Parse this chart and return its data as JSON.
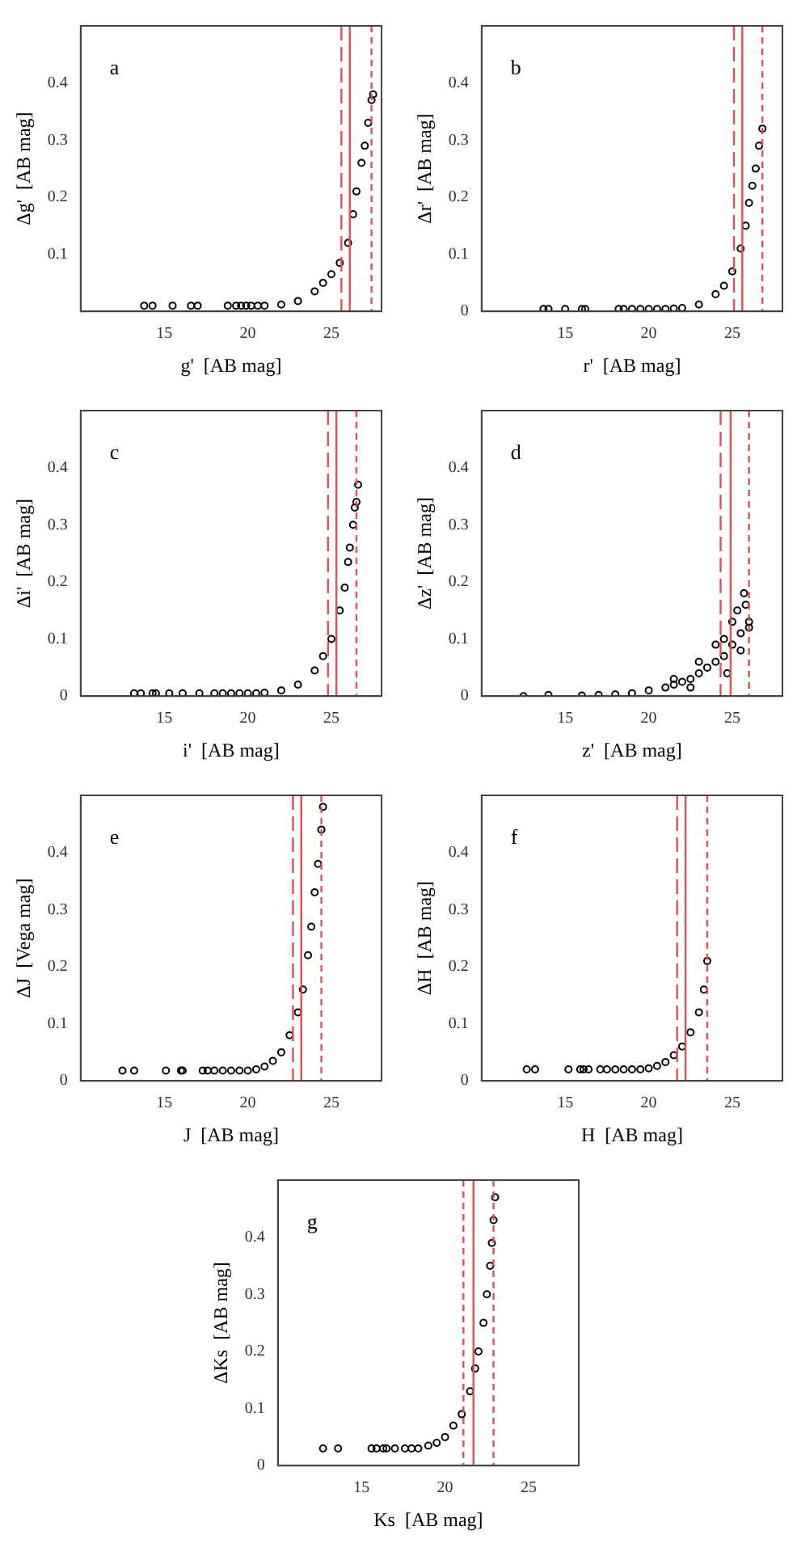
{
  "chart_data": [
    {
      "type": "scatter",
      "xlabel": "g'  [AB mag]",
      "ylabel": "Δg'  [AB mag]",
      "annotations": [
        "a"
      ],
      "marker": "circle",
      "grid": false,
      "xlim": [
        10,
        28
      ],
      "ylim": [
        0,
        0.5
      ],
      "xticks": [
        15,
        20,
        25
      ],
      "yticks": [
        0.1,
        0.2,
        0.3,
        0.4
      ],
      "series": [
        {
          "color": "#000000",
          "x": [
            13.8,
            14.3,
            15.5,
            16.6,
            17.0,
            18.8,
            19.3,
            19.6,
            19.9,
            20.2,
            20.6,
            21,
            22,
            23,
            24,
            24.5,
            25,
            25.5,
            26,
            26.3,
            26.5,
            26.8,
            27.0,
            27.2,
            27.4,
            27.5
          ],
          "values": [
            0.01,
            0.01,
            0.01,
            0.01,
            0.01,
            0.01,
            0.01,
            0.01,
            0.01,
            0.01,
            0.01,
            0.01,
            0.012,
            0.018,
            0.035,
            0.05,
            0.065,
            0.085,
            0.12,
            0.17,
            0.21,
            0.26,
            0.29,
            0.33,
            0.37,
            0.38
          ]
        }
      ],
      "ref_lines": [
        {
          "axis": "x",
          "value": 25.6,
          "color": "#e05050",
          "line_style": "dashed"
        },
        {
          "axis": "x",
          "value": 26.1,
          "color": "#e05050",
          "line_style": "solid"
        },
        {
          "axis": "x",
          "value": 27.4,
          "color": "#e05050",
          "line_style": "dotted"
        }
      ]
    },
    {
      "type": "scatter",
      "xlabel": "r'  [AB mag]",
      "ylabel": "Δr'  [AB mag]",
      "annotations": [
        "b"
      ],
      "marker": "circle",
      "grid": false,
      "xlim": [
        10,
        28
      ],
      "ylim": [
        0,
        0.5
      ],
      "xticks": [
        15,
        20,
        25
      ],
      "yticks": [
        0,
        0.1,
        0.2,
        0.3,
        0.4
      ],
      "series": [
        {
          "color": "#000000",
          "x": [
            13.7,
            14.0,
            15.0,
            16.0,
            16.2,
            18.2,
            18.5,
            19.0,
            19.5,
            20,
            20.5,
            21,
            21.5,
            22,
            23,
            24,
            24.5,
            25,
            25.5,
            25.8,
            26,
            26.2,
            26.4,
            26.6,
            26.8
          ],
          "values": [
            0.004,
            0.004,
            0.004,
            0.004,
            0.004,
            0.004,
            0.004,
            0.004,
            0.004,
            0.004,
            0.004,
            0.004,
            0.005,
            0.006,
            0.012,
            0.03,
            0.045,
            0.07,
            0.11,
            0.15,
            0.19,
            0.22,
            0.25,
            0.29,
            0.32
          ]
        }
      ],
      "ref_lines": [
        {
          "axis": "x",
          "value": 25.1,
          "color": "#e05050",
          "line_style": "dashed"
        },
        {
          "axis": "x",
          "value": 25.6,
          "color": "#e05050",
          "line_style": "solid"
        },
        {
          "axis": "x",
          "value": 26.8,
          "color": "#e05050",
          "line_style": "dotted"
        }
      ]
    },
    {
      "type": "scatter",
      "xlabel": "i'  [AB mag]",
      "ylabel": "Δi'  [AB mag]",
      "annotations": [
        "c"
      ],
      "marker": "circle",
      "grid": false,
      "xlim": [
        10,
        28
      ],
      "ylim": [
        0,
        0.5
      ],
      "xticks": [
        15,
        20,
        25
      ],
      "yticks": [
        0,
        0.1,
        0.2,
        0.3,
        0.4
      ],
      "series": [
        {
          "color": "#000000",
          "x": [
            13.2,
            13.6,
            14.3,
            14.5,
            15.3,
            16.1,
            17.1,
            18,
            18.5,
            19,
            19.5,
            20,
            20.5,
            21,
            22,
            23,
            24,
            24.5,
            25,
            25.5,
            25.8,
            26,
            26.1,
            26.3,
            26.4,
            26.5,
            26.6
          ],
          "values": [
            0.005,
            0.005,
            0.005,
            0.005,
            0.005,
            0.005,
            0.005,
            0.005,
            0.005,
            0.005,
            0.005,
            0.005,
            0.005,
            0.006,
            0.01,
            0.02,
            0.045,
            0.07,
            0.1,
            0.15,
            0.19,
            0.235,
            0.26,
            0.3,
            0.33,
            0.34,
            0.37
          ]
        }
      ],
      "ref_lines": [
        {
          "axis": "x",
          "value": 24.8,
          "color": "#e05050",
          "line_style": "dashed"
        },
        {
          "axis": "x",
          "value": 25.3,
          "color": "#e05050",
          "line_style": "solid"
        },
        {
          "axis": "x",
          "value": 26.5,
          "color": "#e05050",
          "line_style": "dotted"
        }
      ]
    },
    {
      "type": "scatter",
      "xlabel": "z'  [AB mag]",
      "ylabel": "Δz'  [AB mag]",
      "annotations": [
        "d"
      ],
      "marker": "circle",
      "grid": false,
      "xlim": [
        10,
        28
      ],
      "ylim": [
        0,
        0.5
      ],
      "xticks": [
        15,
        20,
        25
      ],
      "yticks": [
        0,
        0.1,
        0.2,
        0.3,
        0.4
      ],
      "series": [
        {
          "color": "#000000",
          "x": [
            12.5,
            14,
            16,
            17,
            18,
            19,
            20,
            21,
            21.5,
            22,
            22.5,
            23,
            23.5,
            24,
            24.5,
            25,
            25.5,
            26,
            23,
            24,
            24.5,
            25,
            25.3,
            25.7,
            25.8,
            24.7,
            25.5,
            26,
            22.5,
            21.5
          ],
          "values": [
            0,
            0.002,
            0.001,
            0.002,
            0.003,
            0.005,
            0.01,
            0.015,
            0.02,
            0.025,
            0.03,
            0.04,
            0.05,
            0.06,
            0.07,
            0.09,
            0.11,
            0.13,
            0.06,
            0.09,
            0.1,
            0.13,
            0.15,
            0.18,
            0.16,
            0.04,
            0.08,
            0.12,
            0.015,
            0.03
          ]
        }
      ],
      "ref_lines": [
        {
          "axis": "x",
          "value": 24.3,
          "color": "#e05050",
          "line_style": "dashed"
        },
        {
          "axis": "x",
          "value": 24.9,
          "color": "#e05050",
          "line_style": "solid"
        },
        {
          "axis": "x",
          "value": 26.0,
          "color": "#e05050",
          "line_style": "dotted"
        }
      ]
    },
    {
      "type": "scatter",
      "xlabel": "J  [AB mag]",
      "ylabel": "ΔJ  [Vega mag]",
      "annotations": [
        "e"
      ],
      "marker": "circle",
      "grid": false,
      "xlim": [
        10,
        28
      ],
      "ylim": [
        0,
        0.5
      ],
      "xticks": [
        15,
        20,
        25
      ],
      "yticks": [
        0,
        0.1,
        0.2,
        0.3,
        0.4
      ],
      "series": [
        {
          "color": "#000000",
          "x": [
            12.5,
            13.2,
            15.1,
            16,
            16.1,
            17.3,
            17.6,
            18,
            18.5,
            19,
            19.5,
            20,
            20.5,
            21,
            21.5,
            22,
            22.5,
            23,
            23.3,
            23.6,
            23.8,
            24,
            24.2,
            24.4,
            24.5
          ],
          "values": [
            0.018,
            0.018,
            0.018,
            0.018,
            0.018,
            0.018,
            0.018,
            0.018,
            0.018,
            0.018,
            0.018,
            0.018,
            0.02,
            0.025,
            0.035,
            0.05,
            0.08,
            0.12,
            0.16,
            0.22,
            0.27,
            0.33,
            0.38,
            0.44,
            0.48
          ]
        }
      ],
      "ref_lines": [
        {
          "axis": "x",
          "value": 22.7,
          "color": "#e05050",
          "line_style": "dashed"
        },
        {
          "axis": "x",
          "value": 23.2,
          "color": "#e05050",
          "line_style": "solid"
        },
        {
          "axis": "x",
          "value": 24.4,
          "color": "#e05050",
          "line_style": "dotted"
        }
      ]
    },
    {
      "type": "scatter",
      "xlabel": "H  [AB mag]",
      "ylabel": "ΔH  [AB mag]",
      "annotations": [
        "f"
      ],
      "marker": "circle",
      "grid": false,
      "xlim": [
        10,
        28
      ],
      "ylim": [
        0,
        0.5
      ],
      "xticks": [
        15,
        20,
        25
      ],
      "yticks": [
        0,
        0.1,
        0.2,
        0.3,
        0.4
      ],
      "series": [
        {
          "color": "#000000",
          "x": [
            12.7,
            13.2,
            15.2,
            15.9,
            16.1,
            16.4,
            17.1,
            17.5,
            18,
            18.5,
            19,
            19.5,
            20,
            20.5,
            21,
            21.5,
            22,
            22.5,
            23,
            23.3,
            23.5
          ],
          "values": [
            0.02,
            0.02,
            0.02,
            0.02,
            0.02,
            0.02,
            0.02,
            0.02,
            0.02,
            0.02,
            0.02,
            0.02,
            0.022,
            0.026,
            0.033,
            0.045,
            0.06,
            0.085,
            0.12,
            0.16,
            0.21
          ]
        }
      ],
      "ref_lines": [
        {
          "axis": "x",
          "value": 21.7,
          "color": "#e05050",
          "line_style": "dashed"
        },
        {
          "axis": "x",
          "value": 22.2,
          "color": "#e05050",
          "line_style": "solid"
        },
        {
          "axis": "x",
          "value": 23.5,
          "color": "#e05050",
          "line_style": "dotted"
        }
      ]
    },
    {
      "type": "scatter",
      "xlabel": "Ks  [AB mag]",
      "ylabel": "ΔKs  [AB mag]",
      "annotations": [
        "g"
      ],
      "marker": "circle",
      "grid": false,
      "xlim": [
        10,
        28
      ],
      "ylim": [
        0,
        0.5
      ],
      "xticks": [
        15,
        20,
        25
      ],
      "yticks": [
        0,
        0.1,
        0.2,
        0.3,
        0.4
      ],
      "series": [
        {
          "color": "#000000",
          "x": [
            12.7,
            13.6,
            15.6,
            15.9,
            16.3,
            16.5,
            17,
            17.6,
            18,
            18.4,
            19,
            19.5,
            20,
            20.5,
            21,
            21.5,
            21.8,
            22,
            22.3,
            22.5,
            22.7,
            22.8,
            22.9,
            23
          ],
          "values": [
            0.03,
            0.03,
            0.03,
            0.03,
            0.03,
            0.03,
            0.03,
            0.03,
            0.03,
            0.03,
            0.035,
            0.04,
            0.05,
            0.07,
            0.09,
            0.13,
            0.17,
            0.2,
            0.25,
            0.3,
            0.35,
            0.39,
            0.43,
            0.47
          ]
        }
      ],
      "ref_lines": [
        {
          "axis": "x",
          "value": 21.1,
          "color": "#e05050",
          "line_style": "dotted"
        },
        {
          "axis": "x",
          "value": 21.7,
          "color": "#e05050",
          "line_style": "solid"
        },
        {
          "axis": "x",
          "value": 22.9,
          "color": "#e05050",
          "line_style": "dotted"
        }
      ]
    }
  ]
}
